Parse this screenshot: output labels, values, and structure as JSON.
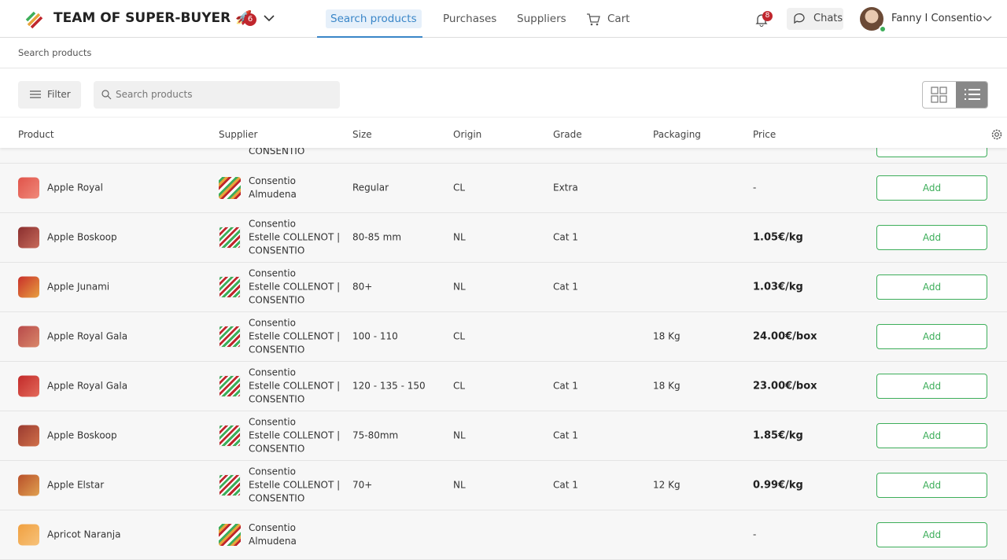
{
  "header": {
    "team": "TEAM OF SUPER-BUYER 🚀",
    "team_badge": 6,
    "nav": [
      "Search products",
      "Purchases",
      "Suppliers",
      "Cart"
    ],
    "notifications": 8,
    "chats": "Chats",
    "user": "Fanny I Consentio"
  },
  "breadcrumb": "Search products",
  "toolbar": {
    "filter": "Filter",
    "search_placeholder": "Search products"
  },
  "table": {
    "columns": [
      "Product",
      "Supplier",
      "Size",
      "Origin",
      "Grade",
      "Packaging",
      "Price"
    ],
    "partial_row": {
      "supplier": "CONSENTIO"
    },
    "rows": [
      {
        "product": "Apple Royal",
        "supplier": [
          "Consentio",
          "Almudena"
        ],
        "size": "Regular",
        "origin": "CL",
        "grade": "Extra",
        "price": "-",
        "action": "Add"
      },
      {
        "product": "Apple Boskoop",
        "supplier": [
          "Consentio",
          "Estelle COLLENOT |",
          "CONSENTIO"
        ],
        "size": "80-85 mm",
        "origin": "NL",
        "grade": "Cat 1",
        "price": "1.05€/kg",
        "action": "Add"
      },
      {
        "product": "Apple Junami",
        "supplier": [
          "Consentio",
          "Estelle COLLENOT |",
          "CONSENTIO"
        ],
        "size": "80+",
        "origin": "NL",
        "grade": "Cat 1",
        "price": "1.03€/kg",
        "action": "Add"
      },
      {
        "product": "Apple Royal Gala",
        "supplier": [
          "Consentio",
          "Estelle COLLENOT |",
          "CONSENTIO"
        ],
        "size": "100 - 110",
        "origin": "CL",
        "packaging": "18 Kg",
        "price": "24.00€/box",
        "action": "Add"
      },
      {
        "product": "Apple Royal Gala",
        "supplier": [
          "Consentio",
          "Estelle COLLENOT |",
          "CONSENTIO"
        ],
        "size": "120 - 135 - 150",
        "origin": "CL",
        "grade": "Cat 1",
        "packaging": "18 Kg",
        "price": "23.00€/box",
        "action": "Add"
      },
      {
        "product": "Apple Boskoop",
        "supplier": [
          "Consentio",
          "Estelle COLLENOT |",
          "CONSENTIO"
        ],
        "size": "75-80mm",
        "origin": "NL",
        "grade": "Cat 1",
        "price": "1.85€/kg",
        "action": "Add"
      },
      {
        "product": "Apple Elstar",
        "supplier": [
          "Consentio",
          "Estelle COLLENOT |",
          "CONSENTIO"
        ],
        "size": "70+",
        "origin": "NL",
        "grade": "Cat 1",
        "packaging": "12 Kg",
        "price": "0.99€/kg",
        "action": "Add"
      },
      {
        "product": "Apricot Naranja",
        "supplier": [
          "Consentio",
          "Almudena"
        ],
        "price": "-",
        "action": "Add"
      }
    ]
  }
}
